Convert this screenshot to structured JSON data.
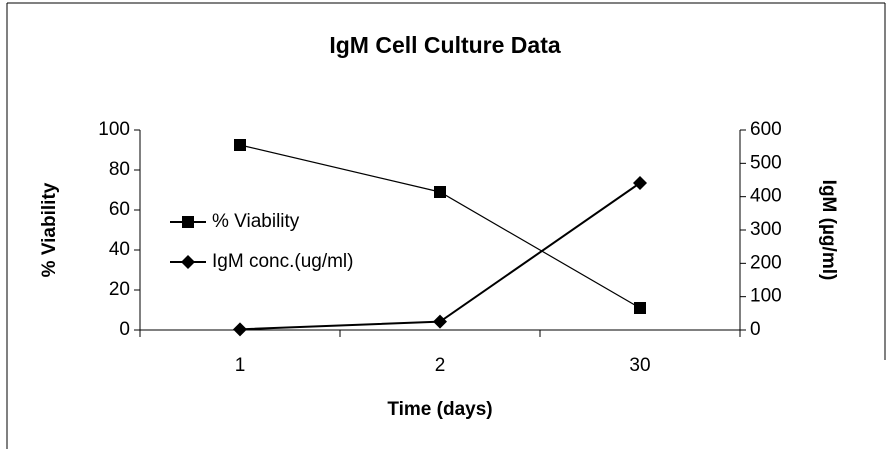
{
  "chart_data": {
    "type": "line",
    "title": "IgM Cell Culture Data",
    "x_label": "Time (days)",
    "y_label": "% Viability",
    "y2_label": "IgM (µg/ml)",
    "categories": [
      "1",
      "2",
      "30"
    ],
    "series": [
      {
        "name": "% Viability",
        "color": "#000000",
        "marker": "square",
        "values": [
          92.5,
          69,
          11
        ]
      },
      {
        "name": "IgM conc.(ug/ml)",
        "color": "#000000",
        "marker": "diamond",
        "axis": "y2",
        "values": [
          2,
          25,
          441
        ]
      }
    ],
    "ylim": [
      0,
      100
    ],
    "yticks": [
      0,
      20,
      40,
      60,
      80,
      100
    ],
    "y2lim": [
      0,
      600
    ],
    "y2ticks": [
      0,
      100,
      200,
      300,
      400,
      500,
      600
    ],
    "grid": false,
    "legend": "left"
  }
}
